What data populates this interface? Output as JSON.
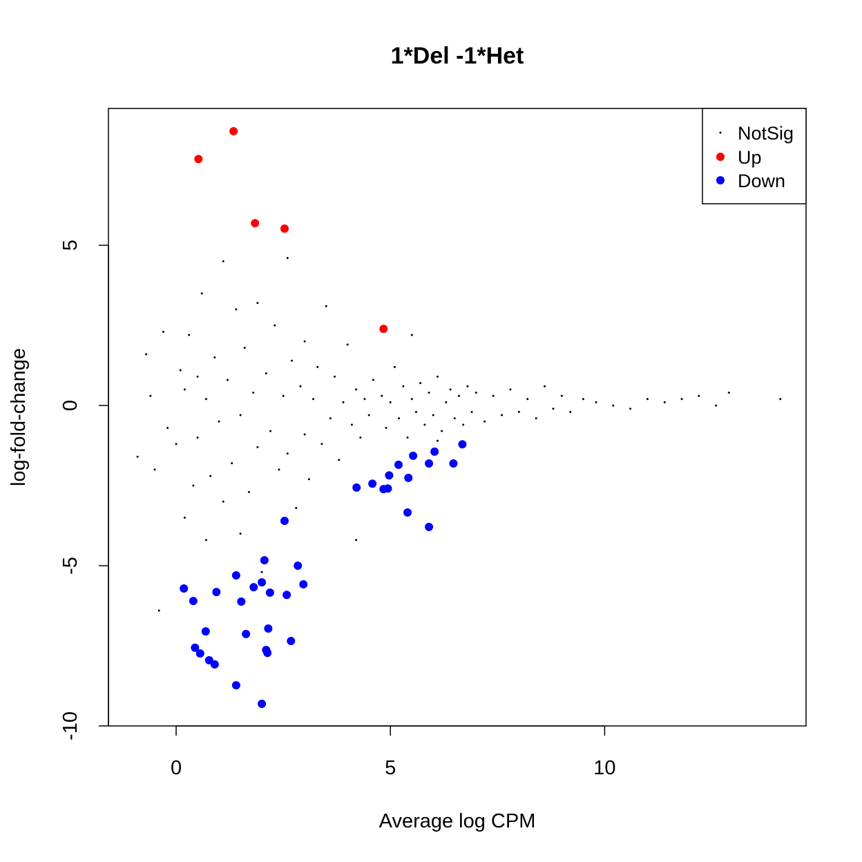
{
  "chart_data": {
    "type": "scatter",
    "title": "1*Del -1*Het",
    "xlabel": "Average log CPM",
    "ylabel": "log-fold-change",
    "xlim": [
      -1.58,
      14.7
    ],
    "ylim": [
      -10.0,
      9.27
    ],
    "xticks": [
      0,
      5,
      10
    ],
    "yticks": [
      -10,
      -5,
      0,
      5
    ],
    "grid": false,
    "legend": {
      "placement": "top-right",
      "entries": [
        "NotSig",
        "Up",
        "Down"
      ]
    },
    "series": [
      {
        "name": "NotSig",
        "color": "#000000",
        "points": [
          [
            -0.9,
            -1.6
          ],
          [
            -0.7,
            1.6
          ],
          [
            -0.6,
            0.3
          ],
          [
            -0.5,
            -2.0
          ],
          [
            -0.4,
            -6.4
          ],
          [
            -0.3,
            2.3
          ],
          [
            -0.2,
            -0.7
          ],
          [
            0,
            -1.2
          ],
          [
            0.1,
            1.1
          ],
          [
            0.2,
            -3.5
          ],
          [
            0.2,
            0.5
          ],
          [
            0.3,
            2.2
          ],
          [
            0.4,
            -2.5
          ],
          [
            0.5,
            0.9
          ],
          [
            0.5,
            -1.0
          ],
          [
            0.6,
            3.5
          ],
          [
            0.7,
            -4.2
          ],
          [
            0.7,
            0.2
          ],
          [
            0.8,
            -2.2
          ],
          [
            0.9,
            1.5
          ],
          [
            1.0,
            -0.5
          ],
          [
            1.1,
            4.5
          ],
          [
            1.1,
            -3.0
          ],
          [
            1.2,
            0.8
          ],
          [
            1.3,
            -1.8
          ],
          [
            1.4,
            3.0
          ],
          [
            1.5,
            -0.3
          ],
          [
            1.5,
            -4.0
          ],
          [
            1.6,
            1.8
          ],
          [
            1.7,
            -2.7
          ],
          [
            1.8,
            0.4
          ],
          [
            1.9,
            3.2
          ],
          [
            1.9,
            -1.3
          ],
          [
            2.0,
            -5.2
          ],
          [
            2.1,
            1.0
          ],
          [
            2.2,
            -0.8
          ],
          [
            2.3,
            2.5
          ],
          [
            2.4,
            -2.0
          ],
          [
            2.5,
            0.3
          ],
          [
            2.6,
            4.6
          ],
          [
            2.6,
            -1.5
          ],
          [
            2.7,
            1.4
          ],
          [
            2.8,
            -3.2
          ],
          [
            2.9,
            0.6
          ],
          [
            3.0,
            -0.9
          ],
          [
            3.0,
            2.0
          ],
          [
            3.1,
            -2.3
          ],
          [
            3.2,
            0.2
          ],
          [
            3.3,
            1.2
          ],
          [
            3.4,
            -1.2
          ],
          [
            3.5,
            3.1
          ],
          [
            3.6,
            -0.4
          ],
          [
            3.7,
            0.9
          ],
          [
            3.8,
            -1.7
          ],
          [
            3.9,
            0.1
          ],
          [
            4.0,
            1.9
          ],
          [
            4.1,
            -0.6
          ],
          [
            4.2,
            0.5
          ],
          [
            4.2,
            -4.2
          ],
          [
            4.3,
            -1.0
          ],
          [
            4.4,
            0.2
          ],
          [
            4.5,
            -0.3
          ],
          [
            4.6,
            0.8
          ],
          [
            4.8,
            0.3
          ],
          [
            4.9,
            -0.7
          ],
          [
            5.0,
            0.1
          ],
          [
            5.1,
            1.2
          ],
          [
            5.2,
            -0.4
          ],
          [
            5.3,
            0.6
          ],
          [
            5.4,
            -1.0
          ],
          [
            5.5,
            0.2
          ],
          [
            5.5,
            2.2
          ],
          [
            5.6,
            -0.2
          ],
          [
            5.7,
            0.7
          ],
          [
            5.8,
            -0.6
          ],
          [
            5.9,
            0.4
          ],
          [
            6.0,
            -0.3
          ],
          [
            6.1,
            0.9
          ],
          [
            6.1,
            -1.1
          ],
          [
            6.2,
            -0.8
          ],
          [
            6.3,
            0.1
          ],
          [
            6.4,
            0.5
          ],
          [
            6.5,
            -0.4
          ],
          [
            6.6,
            0.3
          ],
          [
            6.7,
            -0.6
          ],
          [
            6.8,
            0.6
          ],
          [
            6.9,
            -0.2
          ],
          [
            7.0,
            0.4
          ],
          [
            7.2,
            -0.5
          ],
          [
            7.4,
            0.3
          ],
          [
            7.6,
            -0.3
          ],
          [
            7.8,
            0.5
          ],
          [
            8.0,
            -0.2
          ],
          [
            8.2,
            0.2
          ],
          [
            8.4,
            -0.4
          ],
          [
            8.6,
            0.6
          ],
          [
            8.8,
            -0.1
          ],
          [
            9.0,
            0.3
          ],
          [
            9.2,
            -0.2
          ],
          [
            9.5,
            0.2
          ],
          [
            9.8,
            0.1
          ],
          [
            10.2,
            0.0
          ],
          [
            10.6,
            -0.1
          ],
          [
            11.0,
            0.2
          ],
          [
            11.4,
            0.1
          ],
          [
            11.8,
            0.2
          ],
          [
            12.2,
            0.3
          ],
          [
            12.6,
            0.0
          ],
          [
            12.9,
            0.4
          ],
          [
            14.1,
            0.2
          ]
        ]
      },
      {
        "name": "Up",
        "color": "#ff0000",
        "points": [
          [
            0.52,
            7.69
          ],
          [
            1.34,
            8.56
          ],
          [
            1.84,
            5.69
          ],
          [
            2.53,
            5.52
          ],
          [
            4.84,
            2.39
          ]
        ]
      },
      {
        "name": "Down",
        "color": "#0000ff",
        "points": [
          [
            0.18,
            -5.71
          ],
          [
            0.4,
            -6.1
          ],
          [
            0.69,
            -7.05
          ],
          [
            0.44,
            -7.56
          ],
          [
            0.56,
            -7.74
          ],
          [
            0.77,
            -7.95
          ],
          [
            0.9,
            -8.08
          ],
          [
            0.94,
            -5.82
          ],
          [
            1.4,
            -5.3
          ],
          [
            1.52,
            -6.12
          ],
          [
            1.63,
            -7.13
          ],
          [
            1.4,
            -8.73
          ],
          [
            1.81,
            -5.67
          ],
          [
            2.0,
            -5.52
          ],
          [
            2.06,
            -4.83
          ],
          [
            2.19,
            -5.84
          ],
          [
            2.15,
            -6.96
          ],
          [
            2.1,
            -7.63
          ],
          [
            2.13,
            -7.72
          ],
          [
            2.0,
            -9.31
          ],
          [
            2.53,
            -3.6
          ],
          [
            2.58,
            -5.91
          ],
          [
            2.68,
            -7.35
          ],
          [
            2.84,
            -5.0
          ],
          [
            2.97,
            -5.58
          ],
          [
            4.21,
            -2.56
          ],
          [
            4.58,
            -2.44
          ],
          [
            4.84,
            -2.61
          ],
          [
            4.94,
            -2.59
          ],
          [
            4.97,
            -2.18
          ],
          [
            5.19,
            -1.85
          ],
          [
            5.42,
            -2.26
          ],
          [
            5.4,
            -3.34
          ],
          [
            5.53,
            -1.57
          ],
          [
            5.9,
            -1.81
          ],
          [
            5.9,
            -3.79
          ],
          [
            6.03,
            -1.44
          ],
          [
            6.47,
            -1.81
          ],
          [
            6.68,
            -1.21
          ]
        ]
      }
    ]
  }
}
